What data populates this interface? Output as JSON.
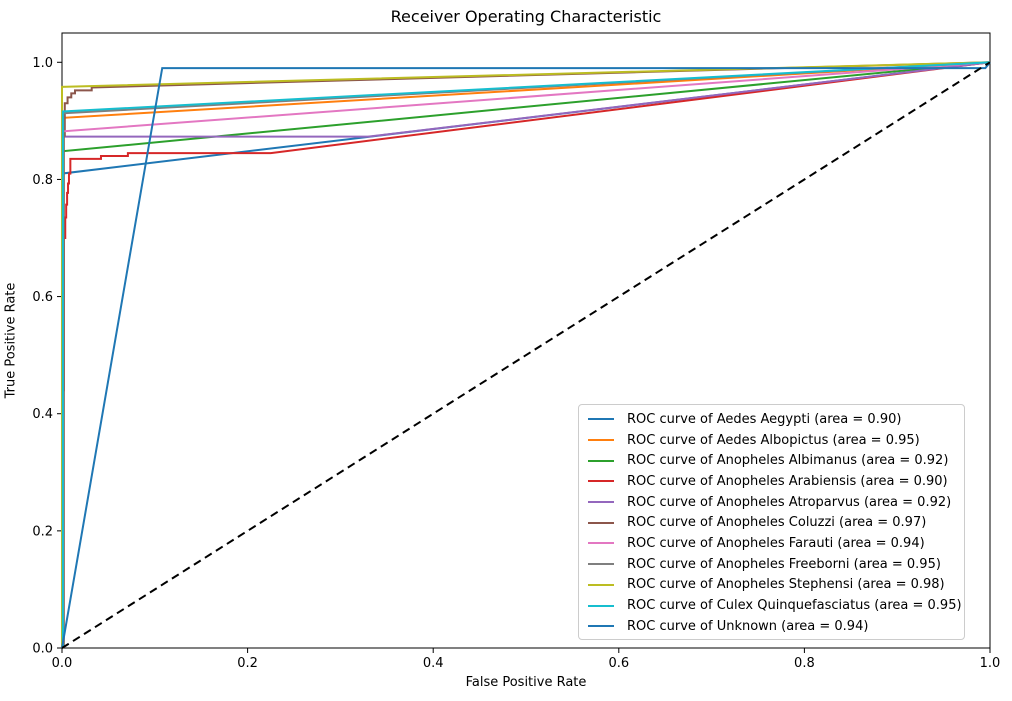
{
  "chart_data": {
    "type": "line",
    "title": "Receiver Operating Characteristic",
    "xlabel": "False Positive Rate",
    "ylabel": "True Positive Rate",
    "xlim": [
      0.0,
      1.0
    ],
    "ylim": [
      0.0,
      1.05
    ],
    "xticks": [
      "0.0",
      "0.2",
      "0.4",
      "0.6",
      "0.8",
      "1.0"
    ],
    "yticks": [
      "0.0",
      "0.2",
      "0.4",
      "0.6",
      "0.8",
      "1.0"
    ],
    "grid": false,
    "legend_position": "lower right",
    "series": [
      {
        "name": "Aedes Aegypti",
        "area": "0.90",
        "color": "#1f77b4",
        "label": "ROC curve of Aedes Aegypti (area = 0.90)",
        "points": [
          [
            0,
            0
          ],
          [
            0,
            0.81
          ],
          [
            1,
            1
          ]
        ]
      },
      {
        "name": "Aedes Albopictus",
        "area": "0.95",
        "color": "#ff7f0e",
        "label": "ROC curve of Aedes Albopictus (area = 0.95)",
        "points": [
          [
            0,
            0
          ],
          [
            0,
            0.905
          ],
          [
            1,
            1
          ]
        ]
      },
      {
        "name": "Anopheles Albimanus",
        "area": "0.92",
        "color": "#2ca02c",
        "label": "ROC curve of Anopheles Albimanus (area = 0.92)",
        "points": [
          [
            0,
            0
          ],
          [
            0,
            0.848
          ],
          [
            1,
            1
          ]
        ]
      },
      {
        "name": "Anopheles Arabiensis",
        "area": "0.90",
        "color": "#d62728",
        "label": "ROC curve of Anopheles Arabiensis (area = 0.90)",
        "points": [
          [
            0,
            0
          ],
          [
            0,
            0.44
          ],
          [
            0.002,
            0.44
          ],
          [
            0.002,
            0.7
          ],
          [
            0.0035,
            0.7
          ],
          [
            0.0035,
            0.735
          ],
          [
            0.0045,
            0.735
          ],
          [
            0.0045,
            0.757
          ],
          [
            0.0055,
            0.757
          ],
          [
            0.0055,
            0.777
          ],
          [
            0.0065,
            0.777
          ],
          [
            0.0065,
            0.793
          ],
          [
            0.0075,
            0.793
          ],
          [
            0.0075,
            0.81
          ],
          [
            0.009,
            0.81
          ],
          [
            0.009,
            0.835
          ],
          [
            0.042,
            0.835
          ],
          [
            0.042,
            0.84
          ],
          [
            0.071,
            0.84
          ],
          [
            0.071,
            0.845
          ],
          [
            0.225,
            0.845
          ],
          [
            1,
            1
          ]
        ]
      },
      {
        "name": "Anopheles Atroparvus",
        "area": "0.92",
        "color": "#9467bd",
        "label": "ROC curve of Anopheles Atroparvus (area = 0.92)",
        "points": [
          [
            0,
            0
          ],
          [
            0,
            0.873
          ],
          [
            0.33,
            0.873
          ],
          [
            1,
            1
          ]
        ]
      },
      {
        "name": "Anopheles Coluzzi",
        "area": "0.97",
        "color": "#8c564b",
        "label": "ROC curve of Anopheles Coluzzi (area = 0.97)",
        "points": [
          [
            0.002,
            0
          ],
          [
            0.002,
            0.875
          ],
          [
            0.003,
            0.875
          ],
          [
            0.003,
            0.93
          ],
          [
            0.006,
            0.93
          ],
          [
            0.006,
            0.94
          ],
          [
            0.01,
            0.94
          ],
          [
            0.01,
            0.947
          ],
          [
            0.014,
            0.947
          ],
          [
            0.014,
            0.952
          ],
          [
            0.032,
            0.952
          ],
          [
            0.032,
            0.957
          ],
          [
            1,
            1
          ]
        ]
      },
      {
        "name": "Anopheles Farauti",
        "area": "0.94",
        "color": "#e377c2",
        "label": "ROC curve of Anopheles Farauti (area = 0.94)",
        "points": [
          [
            0,
            0
          ],
          [
            0,
            0.882
          ],
          [
            1,
            1
          ]
        ]
      },
      {
        "name": "Anopheles Freeborni",
        "area": "0.95",
        "color": "#7f7f7f",
        "label": "ROC curve of Anopheles Freeborni (area = 0.95)",
        "points": [
          [
            0.0015,
            0
          ],
          [
            0.0015,
            0.913
          ],
          [
            1,
            1
          ]
        ]
      },
      {
        "name": "Anopheles Stephensi",
        "area": "0.98",
        "color": "#bcbd22",
        "label": "ROC curve of Anopheles Stephensi (area = 0.98)",
        "points": [
          [
            0,
            0
          ],
          [
            0,
            0.958
          ],
          [
            1,
            1
          ]
        ]
      },
      {
        "name": "Culex Quinquefasciatus",
        "area": "0.95",
        "color": "#17becf",
        "label": "ROC curve of Culex Quinquefasciatus (area = 0.95)",
        "points": [
          [
            0.001,
            0
          ],
          [
            0.001,
            0.916
          ],
          [
            1,
            1
          ]
        ]
      },
      {
        "name": "Unknown",
        "area": "0.94",
        "color": "#1f77b4",
        "label": "ROC curve of Unknown (area = 0.94)",
        "points": [
          [
            0,
            0
          ],
          [
            0.108,
            0.99
          ],
          [
            0.995,
            0.99
          ],
          [
            1,
            1
          ]
        ]
      }
    ],
    "reference_line": {
      "name": "chance-diagonal",
      "style": "dashed",
      "color": "#000000",
      "points": [
        [
          0,
          0
        ],
        [
          1,
          1
        ]
      ]
    }
  }
}
